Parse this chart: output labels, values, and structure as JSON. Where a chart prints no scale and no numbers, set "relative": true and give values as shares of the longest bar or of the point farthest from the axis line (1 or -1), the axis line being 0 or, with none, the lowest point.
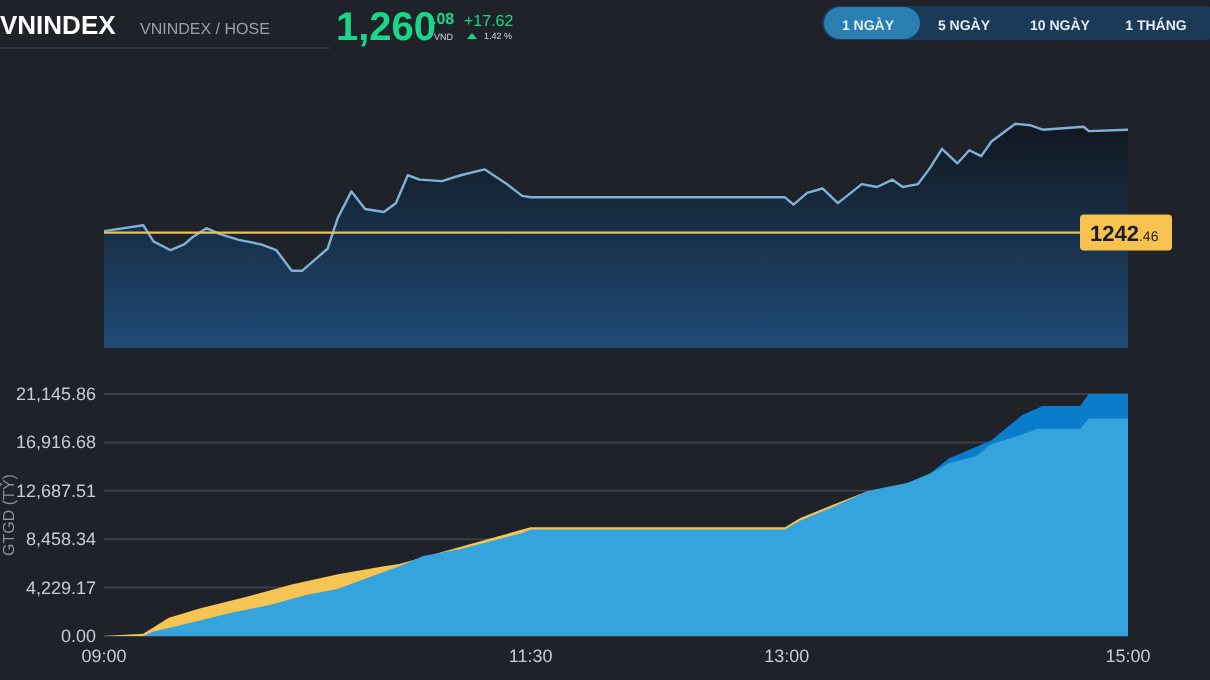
{
  "chart_data": [
    {
      "type": "area",
      "title": "VNINDEX",
      "subtitle": "VNINDEX / HOSE",
      "annotations": [
        "1,260.08",
        "VND",
        "+17.62",
        "1.42 %",
        "1 NGÀY",
        "5 NGÀY",
        "10 NGÀY",
        "1 THÁNG",
        "1242.46"
      ],
      "x": [
        9.0,
        9.23,
        9.29,
        9.39,
        9.47,
        9.52,
        9.6,
        9.68,
        9.79,
        9.92,
        10.01,
        10.1,
        10.16,
        10.24,
        10.31,
        10.37,
        10.45,
        10.53,
        10.64,
        10.71,
        10.78,
        10.85,
        10.98,
        11.09,
        11.23,
        11.36,
        11.45,
        11.5,
        12.99,
        13.04,
        13.12,
        13.21,
        13.3,
        13.44,
        13.53,
        13.62,
        13.68,
        13.77,
        13.84,
        13.91,
        14.0,
        14.07,
        14.14,
        14.2,
        14.34,
        14.43,
        14.5,
        14.74,
        14.77,
        15.0
      ],
      "series": [
        {
          "color": "#7fb2d6",
          "values": [
            0.27,
            0.31,
            0.2,
            0.14,
            0.18,
            0.23,
            0.29,
            0.25,
            0.21,
            0.18,
            0.14,
            0,
            0,
            0.08,
            0.15,
            0.36,
            0.54,
            0.42,
            0.4,
            0.46,
            0.65,
            0.62,
            0.61,
            0.65,
            0.69,
            0.59,
            0.51,
            0.5,
            0.5,
            0.45,
            0.53,
            0.56,
            0.46,
            0.59,
            0.57,
            0.62,
            0.57,
            0.59,
            0.7,
            0.83,
            0.73,
            0.82,
            0.78,
            0.88,
            1,
            0.99,
            0.96,
            0.98,
            0.95,
            0.96
          ]
        }
      ],
      "relative": true,
      "xlim": [
        9,
        15
      ],
      "ref_lines": [
        {
          "axis": "y",
          "value": 0.26,
          "color": "#e8c35a"
        }
      ]
    },
    {
      "type": "area",
      "ylabel": "GTGD (TỶ)",
      "xlim": [
        9,
        15
      ],
      "ylim": [
        0,
        21145.86
      ],
      "xticks": [
        {
          "value": 9,
          "label": "09:00"
        },
        {
          "value": 11.5,
          "label": "11:30"
        },
        {
          "value": 13,
          "label": "13:00"
        },
        {
          "value": 15,
          "label": "15:00"
        }
      ],
      "yticks": [
        {
          "value": 0,
          "label": "0.00"
        },
        {
          "value": 4229.17,
          "label": "4,229.17"
        },
        {
          "value": 8458.34,
          "label": "8,458.34"
        },
        {
          "value": 12687.51,
          "label": "12,687.51"
        },
        {
          "value": 16916.68,
          "label": "16,916.68"
        },
        {
          "value": 21145.86,
          "label": "21,145.86"
        }
      ],
      "grid": "y",
      "series": [
        {
          "color": "#0a7ccc",
          "x": [
            13.84,
            13.95,
            14.2,
            14.38,
            14.5,
            14.72,
            14.77,
            15.0
          ],
          "values": [
            14200,
            15500,
            17100,
            19300,
            20100,
            20100,
            21145.86,
            21145.86
          ]
        },
        {
          "color": "#f6c453",
          "x": [
            9.0,
            9.23,
            9.38,
            9.56,
            9.83,
            10.1,
            10.37,
            10.64,
            10.73,
            11.09,
            11.45,
            11.5,
            12.99,
            13.08,
            13.26,
            13.48
          ],
          "values": [
            0,
            200,
            1600,
            2400,
            3400,
            4500,
            5400,
            6100,
            6300,
            7800,
            9300,
            9500,
            9500,
            10300,
            11400,
            12700
          ]
        },
        {
          "color": "#35a4dc",
          "x": [
            9.0,
            9.23,
            9.29,
            9.52,
            9.74,
            9.97,
            10.19,
            10.37,
            10.51,
            10.73,
            10.87,
            11.09,
            11.45,
            11.5,
            12.99,
            13.08,
            13.26,
            13.48,
            13.71,
            13.84,
            13.95,
            14.11,
            14.2,
            14.34,
            14.47,
            14.72,
            14.77,
            15.0
          ],
          "values": [
            0,
            0,
            400,
            1200,
            2000,
            2700,
            3600,
            4100,
            4900,
            6100,
            7000,
            7600,
            9000,
            9300,
            9300,
            10100,
            11200,
            12700,
            13400,
            14200,
            15100,
            15700,
            16800,
            17400,
            18100,
            18100,
            19000,
            19000
          ]
        }
      ]
    }
  ]
}
